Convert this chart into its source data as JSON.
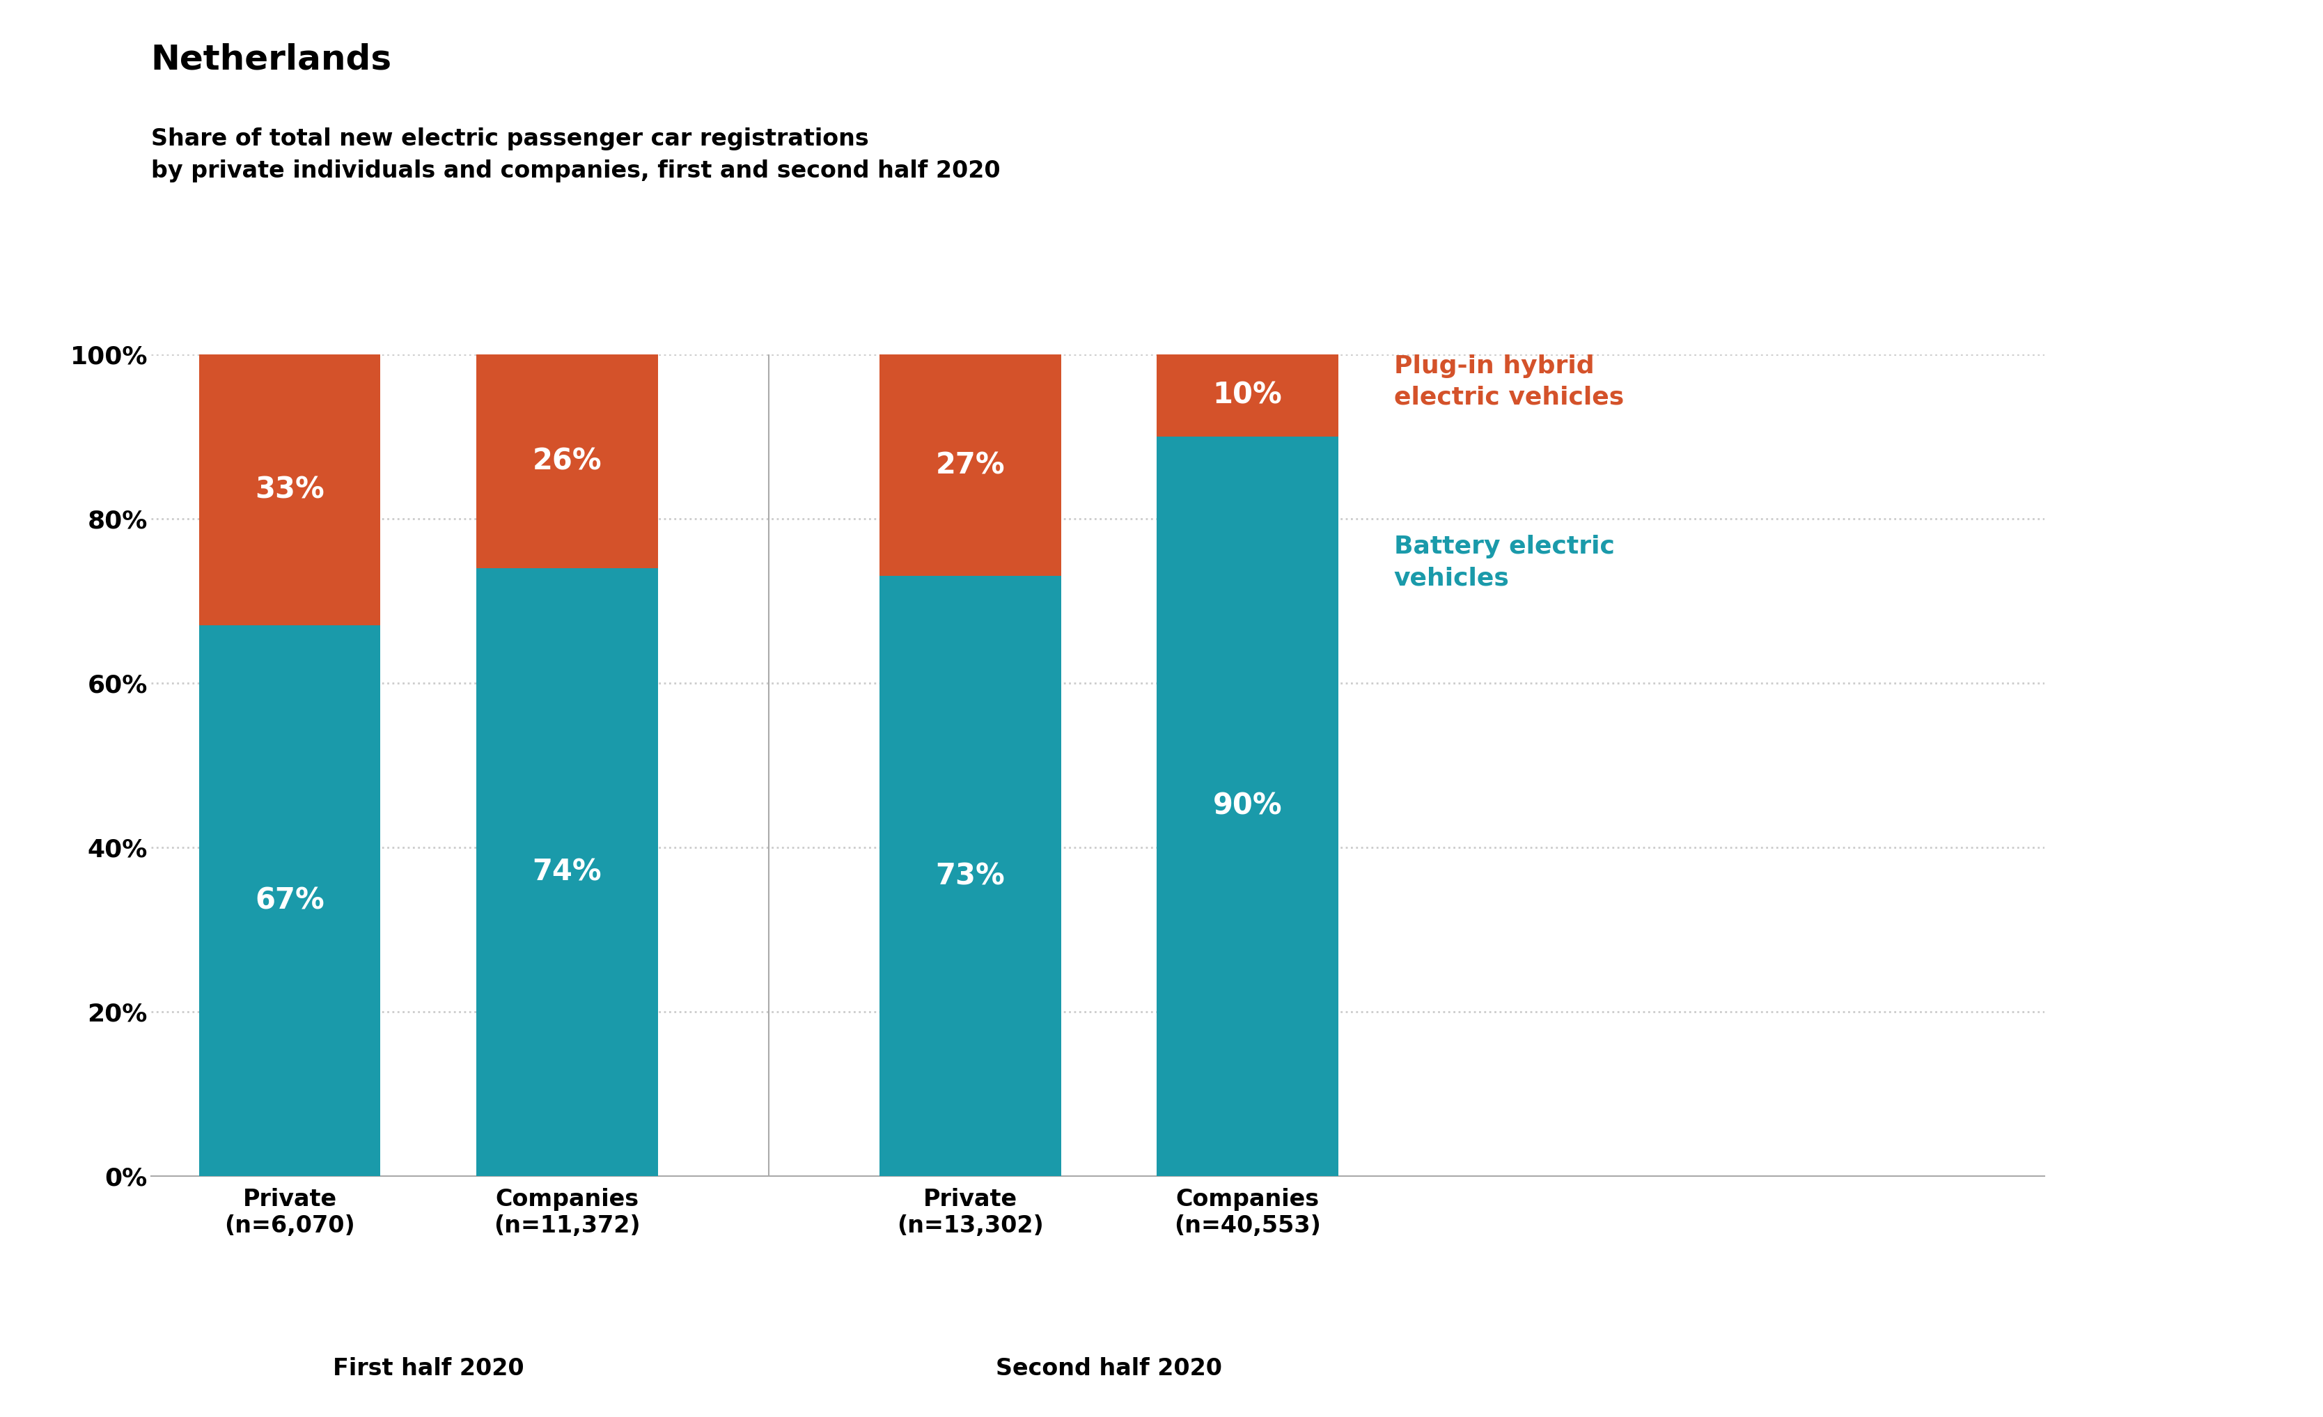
{
  "title": "Netherlands",
  "subtitle": "Share of total new electric passenger car registrations\nby private individuals and companies, first and second half 2020",
  "groups": [
    "First half 2020",
    "Second half 2020"
  ],
  "categories": [
    "Private\n(n=6,070)",
    "Companies\n(n=11,372)",
    "Private\n(n=13,302)",
    "Companies\n(n=40,553)"
  ],
  "bev_values": [
    67,
    74,
    73,
    90
  ],
  "phev_values": [
    33,
    26,
    27,
    10
  ],
  "bev_color": "#1a9aaa",
  "phev_color": "#d4522a",
  "bev_label": "Battery electric\nvehicles",
  "phev_label": "Plug-in hybrid\nelectric vehicles",
  "background_color": "#ffffff",
  "title_fontsize": 36,
  "subtitle_fontsize": 24,
  "tick_fontsize": 26,
  "bar_label_fontsize": 30,
  "legend_fontsize": 26,
  "cat_label_fontsize": 24,
  "group_label_fontsize": 24,
  "ylim": [
    0,
    100
  ],
  "yticks": [
    0,
    20,
    40,
    60,
    80,
    100
  ],
  "ytick_labels": [
    "0%",
    "20%",
    "40%",
    "60%",
    "80%",
    "100%"
  ]
}
